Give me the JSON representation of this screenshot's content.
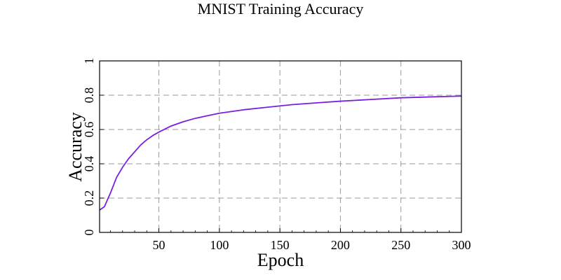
{
  "chart_data": {
    "type": "line",
    "title": "MNIST Training Accuracy",
    "xlabel": "Epoch",
    "ylabel": "Accuracy",
    "xlim": [
      1,
      300
    ],
    "ylim": [
      0,
      1
    ],
    "xticks": [
      50,
      100,
      150,
      200,
      250,
      300
    ],
    "yticks": [
      0,
      0.2,
      0.4,
      0.6,
      0.8,
      1
    ],
    "ytick_labels": [
      "0",
      "0.2",
      "0.4",
      "0.6",
      "0.8",
      "1"
    ],
    "grid": true,
    "series": [
      {
        "color": "#7a1fe0",
        "x": [
          1,
          5,
          10,
          15,
          20,
          25,
          30,
          35,
          40,
          45,
          50,
          60,
          70,
          80,
          90,
          100,
          120,
          140,
          160,
          180,
          200,
          225,
          250,
          275,
          300
        ],
        "y": [
          0.13,
          0.15,
          0.23,
          0.32,
          0.38,
          0.43,
          0.47,
          0.51,
          0.54,
          0.565,
          0.585,
          0.62,
          0.645,
          0.665,
          0.68,
          0.695,
          0.715,
          0.73,
          0.745,
          0.755,
          0.765,
          0.775,
          0.785,
          0.79,
          0.795
        ]
      }
    ]
  }
}
